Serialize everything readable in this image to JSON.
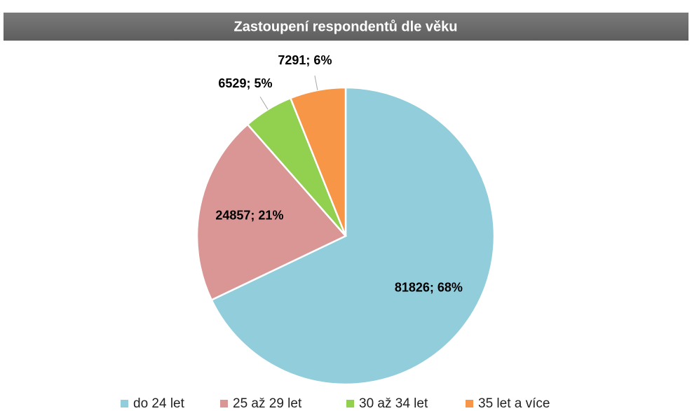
{
  "chart_data": {
    "type": "pie",
    "title": "Zastoupení respondentů dle věku",
    "categories": [
      "do 24 let",
      "25 až 29 let",
      "30 až 34 let",
      "35 let a více"
    ],
    "values": [
      81826,
      24857,
      6529,
      7291
    ],
    "value_labels": [
      "81826; 68%",
      "24857; 21%",
      "6529; 5%",
      "7291; 6%"
    ],
    "colors": [
      "#92cddc",
      "#d99694",
      "#92d050",
      "#f79646"
    ],
    "legend": "bottom"
  }
}
